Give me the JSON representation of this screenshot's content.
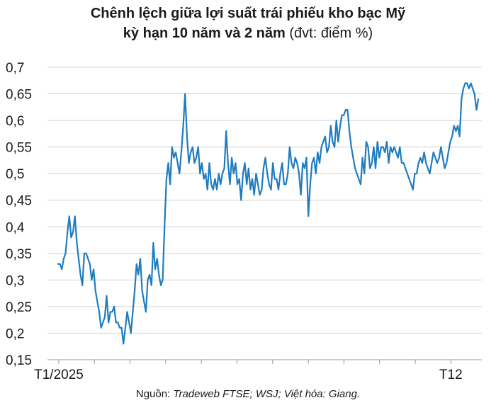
{
  "title_line1": "Chênh lệch giữa lợi suất trái phiếu kho bạc Mỹ",
  "title_line2": "kỳ hạn 10 năm và 2 năm",
  "title_unit": "(đvt: điểm %)",
  "source_label": "Nguồn:",
  "source_text": "Tradeweb FTSE; WSJ; Việt hóa: Giang.",
  "colors": {
    "line": "#1f7cc0",
    "grid": "#d0d0d0",
    "axis": "#9a9a9a"
  },
  "chart_data": {
    "type": "line",
    "x_tick_labels": [
      "T1/2025",
      "T12"
    ],
    "y_ticks": [
      "0,15",
      "0,2",
      "0,25",
      "0,3",
      "0,35",
      "0,4",
      "0,45",
      "0,5",
      "0,55",
      "0,6",
      "0,65",
      "0,7"
    ],
    "ylim": [
      0.15,
      0.7
    ],
    "grid": "horizontal",
    "series": [
      {
        "values": [
          0.33,
          0.33,
          0.32,
          0.34,
          0.35,
          0.39,
          0.42,
          0.38,
          0.39,
          0.42,
          0.37,
          0.34,
          0.31,
          0.29,
          0.35,
          0.35,
          0.34,
          0.33,
          0.3,
          0.32,
          0.28,
          0.26,
          0.24,
          0.21,
          0.22,
          0.23,
          0.27,
          0.22,
          0.24,
          0.24,
          0.25,
          0.22,
          0.22,
          0.21,
          0.21,
          0.18,
          0.21,
          0.24,
          0.22,
          0.2,
          0.24,
          0.28,
          0.33,
          0.31,
          0.34,
          0.28,
          0.26,
          0.24,
          0.3,
          0.31,
          0.29,
          0.37,
          0.32,
          0.34,
          0.31,
          0.29,
          0.3,
          0.4,
          0.49,
          0.52,
          0.48,
          0.55,
          0.53,
          0.54,
          0.52,
          0.5,
          0.54,
          0.59,
          0.65,
          0.57,
          0.52,
          0.54,
          0.55,
          0.52,
          0.53,
          0.55,
          0.5,
          0.52,
          0.49,
          0.5,
          0.47,
          0.52,
          0.48,
          0.47,
          0.49,
          0.47,
          0.5,
          0.48,
          0.5,
          0.51,
          0.58,
          0.52,
          0.48,
          0.53,
          0.5,
          0.52,
          0.48,
          0.49,
          0.45,
          0.5,
          0.52,
          0.48,
          0.51,
          0.47,
          0.49,
          0.46,
          0.5,
          0.48,
          0.46,
          0.47,
          0.51,
          0.53,
          0.5,
          0.48,
          0.47,
          0.52,
          0.49,
          0.49,
          0.47,
          0.5,
          0.52,
          0.48,
          0.48,
          0.5,
          0.55,
          0.52,
          0.51,
          0.53,
          0.52,
          0.5,
          0.46,
          0.52,
          0.51,
          0.53,
          0.42,
          0.48,
          0.52,
          0.53,
          0.5,
          0.54,
          0.52,
          0.55,
          0.56,
          0.57,
          0.54,
          0.55,
          0.59,
          0.56,
          0.55,
          0.6,
          0.56,
          0.59,
          0.61,
          0.61,
          0.62,
          0.62,
          0.58,
          0.55,
          0.53,
          0.51,
          0.5,
          0.49,
          0.48,
          0.53,
          0.5,
          0.56,
          0.55,
          0.51,
          0.52,
          0.55,
          0.51,
          0.56,
          0.53,
          0.55,
          0.55,
          0.54,
          0.56,
          0.52,
          0.55,
          0.54,
          0.55,
          0.54,
          0.53,
          0.55,
          0.52,
          0.52,
          0.51,
          0.5,
          0.49,
          0.48,
          0.47,
          0.5,
          0.5,
          0.52,
          0.53,
          0.52,
          0.54,
          0.52,
          0.51,
          0.5,
          0.52,
          0.54,
          0.53,
          0.52,
          0.53,
          0.55,
          0.53,
          0.51,
          0.52,
          0.54,
          0.56,
          0.57,
          0.59,
          0.58,
          0.59,
          0.57,
          0.64,
          0.66,
          0.67,
          0.67,
          0.66,
          0.67,
          0.66,
          0.65,
          0.62,
          0.64
        ]
      }
    ]
  }
}
